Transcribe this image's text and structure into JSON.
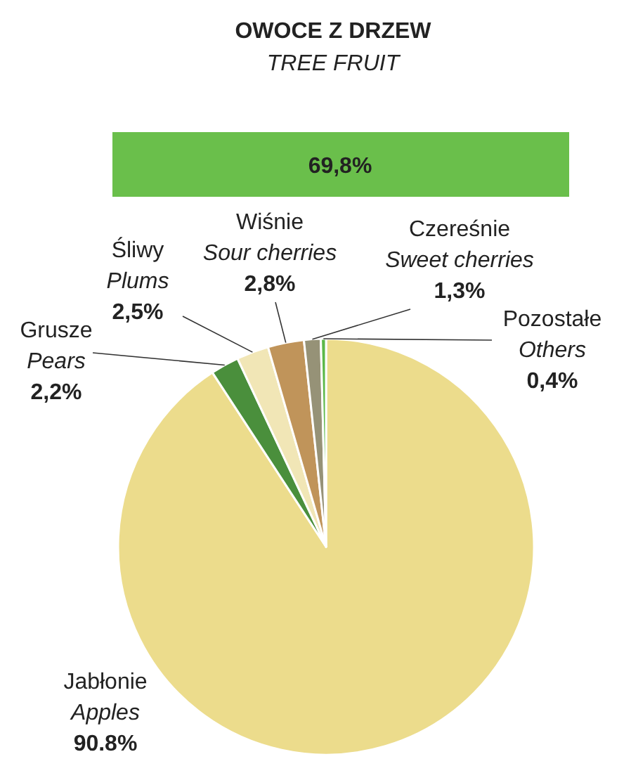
{
  "chart_data": {
    "type": "pie",
    "title": "OWOCE Z DRZEW",
    "subtitle": "TREE FRUIT",
    "annotations": [
      "69,8%"
    ],
    "categories": [
      "Jabłonie\nApples",
      "Grusze\nPears",
      "Śliwy\nPlums",
      "Wiśnie\nSour cherries",
      "Czereśnie\nSweet cherries",
      "Pozostałe\nOthers"
    ],
    "values": [
      90.8,
      2.2,
      2.5,
      2.8,
      1.3,
      0.4
    ],
    "value_labels": [
      "90.8%",
      "2,2%",
      "2,5%",
      "2,8%",
      "1,3%",
      "0,4%"
    ],
    "colors": [
      "#ecdc8c",
      "#4a8f3c",
      "#f1e6b6",
      "#c0945a",
      "#969277",
      "#5cb848"
    ]
  }
}
